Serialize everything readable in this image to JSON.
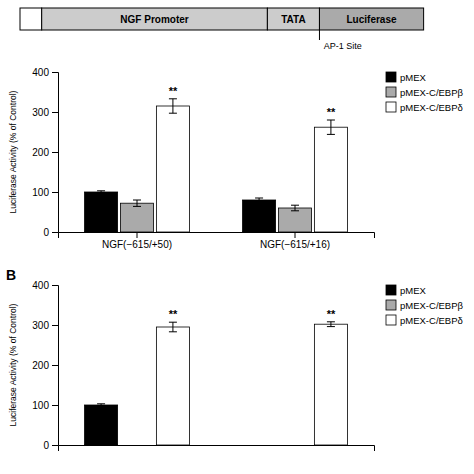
{
  "chart_data": [
    {
      "type": "schematic",
      "annotations": [
        "NGF Promoter",
        "TATA",
        "Luciferase",
        "AP-1 Site"
      ]
    },
    {
      "type": "bar",
      "categories": [
        "NGF(−615/+50)",
        "NGF(−615/+16)"
      ],
      "series": [
        {
          "name": "pMEX",
          "color": "#000000",
          "values": [
            100,
            80
          ],
          "errors": [
            3,
            5
          ]
        },
        {
          "name": "pMEX-C/EBPβ",
          "color": "#aaaaaa",
          "values": [
            72,
            60
          ],
          "errors": [
            8,
            7
          ]
        },
        {
          "name": "pMEX-C/EBPδ",
          "color": "#ffffff",
          "values": [
            315,
            262
          ],
          "errors": [
            18,
            18
          ]
        }
      ],
      "ylabel": "Luciferase Activity (% of Control)",
      "ylim": [
        0,
        400
      ],
      "yticks": [
        0,
        100,
        200,
        300,
        400
      ],
      "legend": "right",
      "annotations": [
        {
          "text": "**",
          "series": 2,
          "category": 0
        },
        {
          "text": "**",
          "series": 2,
          "category": 1
        }
      ]
    },
    {
      "type": "bar",
      "title": "B",
      "categories": [
        null,
        null
      ],
      "series": [
        {
          "name": "pMEX",
          "color": "#000000",
          "values": [
            100,
            null
          ],
          "errors": [
            3,
            null
          ]
        },
        {
          "name": "pMEX-C/EBPβ",
          "color": "#aaaaaa",
          "values": [
            null,
            null
          ],
          "errors": [
            null,
            null
          ]
        },
        {
          "name": "pMEX-C/EBPδ",
          "color": "#ffffff",
          "values": [
            295,
            302
          ],
          "errors": [
            12,
            6
          ]
        }
      ],
      "ylabel": "Luciferase Activity (% of Control)",
      "ylim": [
        0,
        400
      ],
      "yticks": [
        0,
        100,
        200,
        300,
        400
      ],
      "legend": "right",
      "tick_labels": "y",
      "annotations": [
        {
          "text": "**",
          "series": 2,
          "category": 0
        },
        {
          "text": "**",
          "series": 2,
          "category": 1
        }
      ]
    }
  ]
}
